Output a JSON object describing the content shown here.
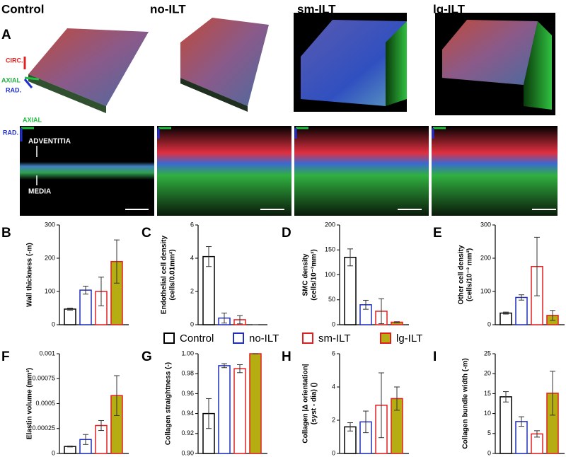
{
  "columns": [
    "Control",
    "no-ILT",
    "sm-ILT",
    "lg-ILT"
  ],
  "panel_a": {
    "label": "A",
    "axes_3d": [
      "CIRC.",
      "AXIAL",
      "RAD."
    ],
    "axes_section": [
      "AXIAL",
      "RAD."
    ],
    "layers": [
      "ADVENTITIA",
      "MEDIA"
    ]
  },
  "legend": [
    {
      "name": "Control",
      "edge": "#000000",
      "fill": "#ffffff"
    },
    {
      "name": "no-ILT",
      "edge": "#1f2fbf",
      "fill": "#ffffff"
    },
    {
      "name": "sm-ILT",
      "edge": "#e02020",
      "fill": "#ffffff"
    },
    {
      "name": "lg-ILT",
      "edge": "#e02020",
      "fill": "#b5ad12"
    }
  ],
  "chart_data": [
    {
      "type": "bar",
      "panel": "B",
      "ylabel": [
        "Wall thickness (-m)"
      ],
      "ylim": [
        0,
        300
      ],
      "yticks": [
        0,
        100,
        200,
        300
      ],
      "values": [
        47,
        104,
        100,
        190
      ],
      "errors": [
        3,
        12,
        43,
        65
      ]
    },
    {
      "type": "bar",
      "panel": "C",
      "ylabel": [
        "Endothelial cell density",
        "(cells/0.01mm²)"
      ],
      "ylim": [
        0,
        6
      ],
      "yticks": [
        0,
        2,
        4,
        6
      ],
      "values": [
        4.1,
        0.4,
        0.3,
        0
      ],
      "errors": [
        0.6,
        0.3,
        0.25,
        0
      ]
    },
    {
      "type": "bar",
      "panel": "D",
      "ylabel": [
        "SMC density",
        "(cells/10⁻³mm³)"
      ],
      "ylim": [
        0,
        200
      ],
      "yticks": [
        0,
        50,
        100,
        150,
        200
      ],
      "values": [
        135,
        40,
        27,
        5
      ],
      "errors": [
        17,
        9,
        25,
        1
      ]
    },
    {
      "type": "bar",
      "panel": "E",
      "ylabel": [
        "Other cell density",
        "(cells/10⁻³ mm³)"
      ],
      "ylim": [
        0,
        300
      ],
      "yticks": [
        0,
        100,
        200,
        300
      ],
      "values": [
        35,
        82,
        175,
        28
      ],
      "errors": [
        3,
        8,
        88,
        15
      ]
    },
    {
      "type": "bar",
      "panel": "F",
      "ylabel": [
        "Elastin volume (mm³)"
      ],
      "ylim": [
        0,
        0.001
      ],
      "yticks": [
        0,
        0.00025,
        0.0005,
        0.00075,
        0.001
      ],
      "values": [
        7e-05,
        0.00014,
        0.00028,
        0.00058
      ],
      "errors": [
        5e-06,
        5e-05,
        5e-05,
        0.0002
      ]
    },
    {
      "type": "bar",
      "panel": "G",
      "ylabel": [
        "Collagen straightness (-)"
      ],
      "ylim": [
        0.9,
        1.0
      ],
      "yticks": [
        {
          "value": 0.9,
          "label": "0.90"
        },
        0.92,
        0.94,
        0.96,
        0.98,
        {
          "value": 1.0,
          "label": "1.00"
        }
      ],
      "values": [
        0.94,
        0.988,
        0.985,
        1.0
      ],
      "errors": [
        0.015,
        0.002,
        0.004,
        0
      ]
    },
    {
      "type": "bar",
      "panel": "H",
      "ylabel": [
        "Collagen |Δ orientation|",
        "(syst - dia) ()"
      ],
      "ylim": [
        0,
        6
      ],
      "yticks": [
        0,
        2,
        4,
        6
      ],
      "values": [
        1.6,
        1.9,
        2.9,
        3.3
      ],
      "errors": [
        0.25,
        0.65,
        1.95,
        0.7
      ]
    },
    {
      "type": "bar",
      "panel": "I",
      "ylabel": [
        "Collagen bundle width (-m)"
      ],
      "ylim": [
        0,
        25
      ],
      "yticks": [
        0,
        5,
        10,
        15,
        20,
        25
      ],
      "values": [
        14.2,
        8,
        4.9,
        15.1
      ],
      "errors": [
        1.3,
        1.2,
        0.8,
        5.5
      ]
    }
  ]
}
